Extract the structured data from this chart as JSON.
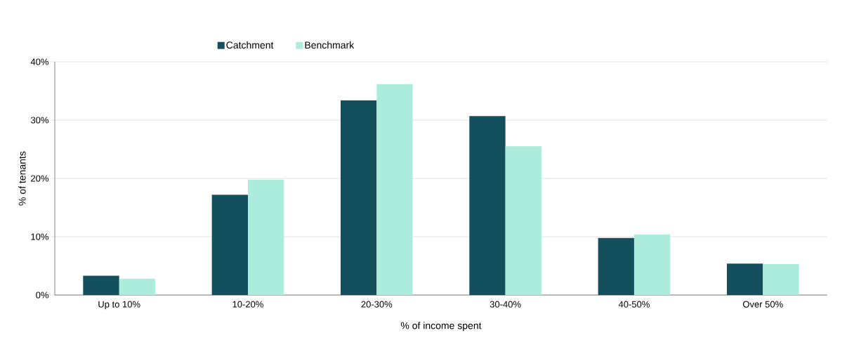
{
  "chart_data": {
    "type": "bar",
    "xlabel": "% of income spent",
    "ylabel": "% of tenants",
    "categories": [
      "Up to 10%",
      "10-20%",
      "20-30%",
      "30-40%",
      "40-50%",
      "Over 50%"
    ],
    "series": [
      {
        "name": "Catchment",
        "color": "#134f5c",
        "values": [
          3.3,
          17.2,
          33.4,
          30.7,
          9.8,
          5.4
        ]
      },
      {
        "name": "Benchmark",
        "color": "#acecdc",
        "values": [
          2.8,
          19.8,
          36.2,
          25.5,
          10.4,
          5.3
        ]
      }
    ],
    "ylim": [
      0,
      40
    ],
    "yticks": [
      {
        "value": 0,
        "label": "0%"
      },
      {
        "value": 10,
        "label": "10%"
      },
      {
        "value": 20,
        "label": "20%"
      },
      {
        "value": 30,
        "label": "30%"
      },
      {
        "value": 40,
        "label": "40%"
      }
    ],
    "grid": "y",
    "legend": "top"
  }
}
